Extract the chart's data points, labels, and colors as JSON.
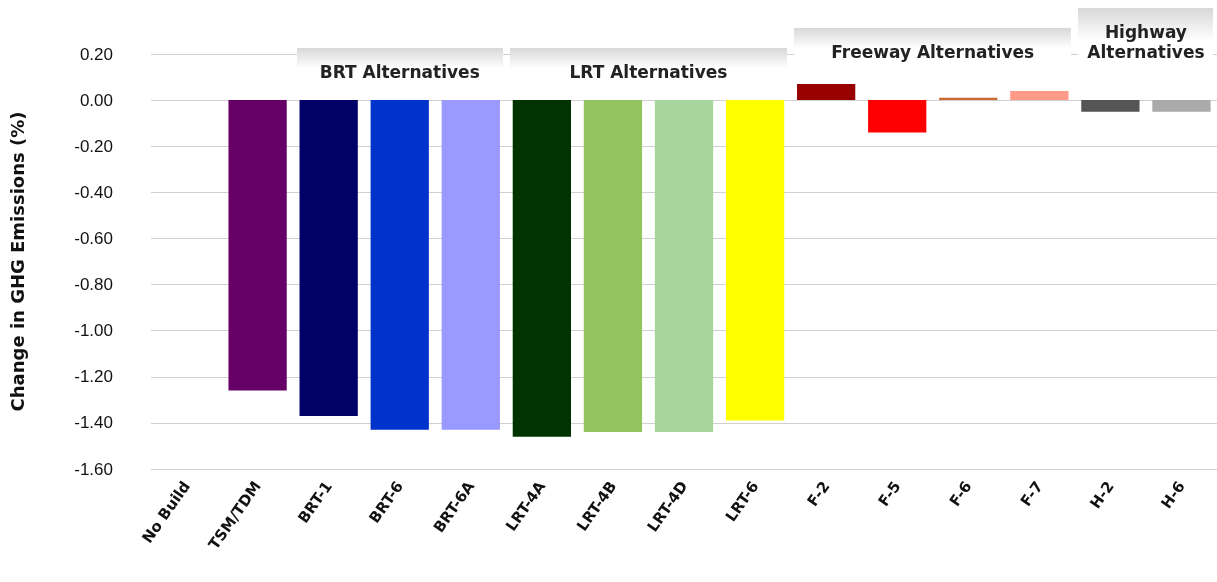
{
  "chart_data": {
    "type": "bar",
    "ylabel": "Change in GHG Emissions (%)",
    "categories": [
      "No Build",
      "TSM/TDM",
      "BRT-1",
      "BRT-6",
      "BRT-6A",
      "LRT-4A",
      "LRT-4B",
      "LRT-4D",
      "LRT-6",
      "F-2",
      "F-5",
      "F-6",
      "F-7",
      "H-2",
      "H-6"
    ],
    "values": [
      0,
      -1.26,
      -1.37,
      -1.43,
      -1.43,
      -1.46,
      -1.44,
      -1.44,
      -1.39,
      0.07,
      -0.14,
      0.01,
      0.04,
      -0.05,
      -0.05
    ],
    "colors": [
      "#660066",
      "#660066",
      "#000066",
      "#0033cc",
      "#9999ff",
      "#003300",
      "#92c460",
      "#a6d49a",
      "#ffff00",
      "#990000",
      "#ff0000",
      "#cc6633",
      "#ff9988",
      "#555555",
      "#aaaaaa"
    ],
    "ylim": [
      -1.6,
      0.2
    ],
    "yticks": [
      {
        "value": -1.6,
        "label": "-1.60"
      },
      {
        "value": -1.4,
        "label": "-1.40"
      },
      {
        "value": -1.2,
        "label": "-1.20"
      },
      {
        "value": -1,
        "label": "-1.00"
      },
      {
        "value": -0.8,
        "label": "-0.80"
      },
      {
        "value": -0.6,
        "label": "-0.60"
      },
      {
        "value": -0.4,
        "label": "-0.40"
      },
      {
        "value": -0.2,
        "label": "-0.20"
      },
      {
        "value": 0,
        "label": "0.00"
      },
      {
        "value": 0.2,
        "label": "0.20"
      }
    ],
    "annotations": [
      "BRT Alternatives",
      "LRT Alternatives",
      "Freeway Alternatives",
      "Highway Alternatives"
    ],
    "grid": true
  }
}
